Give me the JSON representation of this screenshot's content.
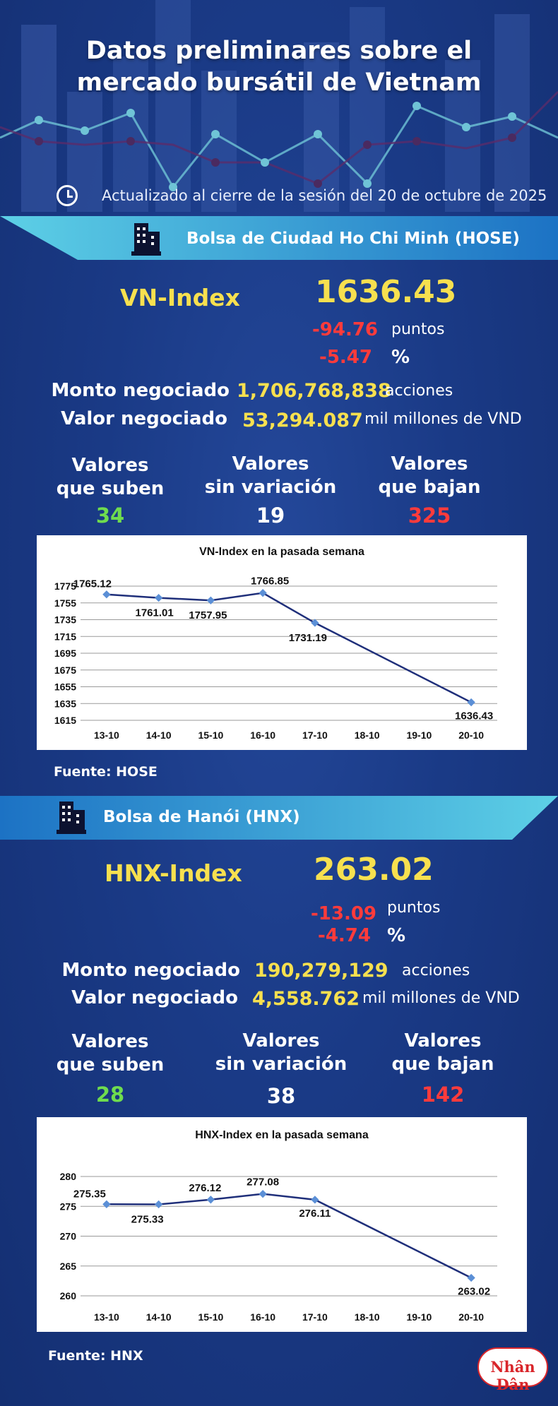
{
  "header": {
    "title_line1": "Datos preliminares sobre el",
    "title_line2": "mercado bursátil de Vietnam",
    "updated": "Actualizado al cierre de la sesión del 20 de octubre de 2025"
  },
  "hose": {
    "band_title": "Bolsa de Ciudad Ho Chi Minh (HOSE)",
    "index_name": "VN-Index",
    "index_value": "1636.43",
    "change_points": "-94.76",
    "points_unit": "puntos",
    "change_pct": "-5.47",
    "pct_unit": "%",
    "volume_label": "Monto negociado",
    "volume_value": "1,706,768,838",
    "volume_unit": "acciones",
    "value_label": "Valor negociado",
    "value_value": "53,294.087",
    "value_unit": "mil millones de VND",
    "up_label": [
      "Valores",
      "que suben"
    ],
    "up_value": "34",
    "flat_label": [
      "Valores",
      "sin variación"
    ],
    "flat_value": "19",
    "down_label": [
      "Valores",
      "que bajan"
    ],
    "down_value": "325",
    "source": "Fuente: HOSE"
  },
  "hnx": {
    "band_title": "Bolsa de Hanói (HNX)",
    "index_name": "HNX-Index",
    "index_value": "263.02",
    "change_points": "-13.09",
    "points_unit": "puntos",
    "change_pct": "-4.74",
    "pct_unit": "%",
    "volume_label": "Monto negociado",
    "volume_value": "190,279,129",
    "volume_unit": "acciones",
    "value_label": "Valor negociado",
    "value_value": "4,558.762",
    "value_unit": "mil millones de VND",
    "up_label": [
      "Valores",
      "que suben"
    ],
    "up_value": "28",
    "flat_label": [
      "Valores",
      "sin variación"
    ],
    "flat_value": "38",
    "down_label": [
      "Valores",
      "que bajan"
    ],
    "down_value": "142",
    "source": "Fuente:  HNX"
  },
  "logo_text": "Nhân Dân",
  "colors": {
    "up": "#6fdc4e",
    "down": "#ff3b3b",
    "accent": "#f7e04f",
    "line": "#1f2f7a",
    "marker": "#5b8fd6"
  },
  "chart_data": [
    {
      "type": "line",
      "title": "VN-Index en la pasada semana",
      "categories": [
        "13-10",
        "14-10",
        "15-10",
        "16-10",
        "17-10",
        "18-10",
        "19-10",
        "20-10"
      ],
      "series": [
        {
          "values": [
            1765.12,
            1761.01,
            1757.95,
            1766.85,
            1731.19,
            null,
            null,
            1636.43
          ]
        }
      ],
      "labels": [
        "1765.12",
        "1761.01",
        "1757.95",
        "1766.85",
        "1731.19",
        "",
        "",
        "1636.43"
      ],
      "yticks": [
        "1775",
        "1755",
        "1735",
        "1715",
        "1695",
        "1675",
        "1655",
        "1635",
        "1615"
      ],
      "ylim": [
        1615,
        1775
      ],
      "grid": true
    },
    {
      "type": "line",
      "title": "HNX-Index en la pasada semana",
      "categories": [
        "13-10",
        "14-10",
        "15-10",
        "16-10",
        "17-10",
        "18-10",
        "19-10",
        "20-10"
      ],
      "series": [
        {
          "values": [
            275.35,
            275.33,
            276.12,
            277.08,
            276.11,
            null,
            null,
            263.02
          ]
        }
      ],
      "labels": [
        "275.35",
        "275.33",
        "276.12",
        "277.08",
        "276.11",
        "",
        "",
        "263.02"
      ],
      "yticks": [
        "280",
        "275",
        "270",
        "265",
        "260"
      ],
      "ylim": [
        260,
        280
      ],
      "grid": true
    }
  ]
}
